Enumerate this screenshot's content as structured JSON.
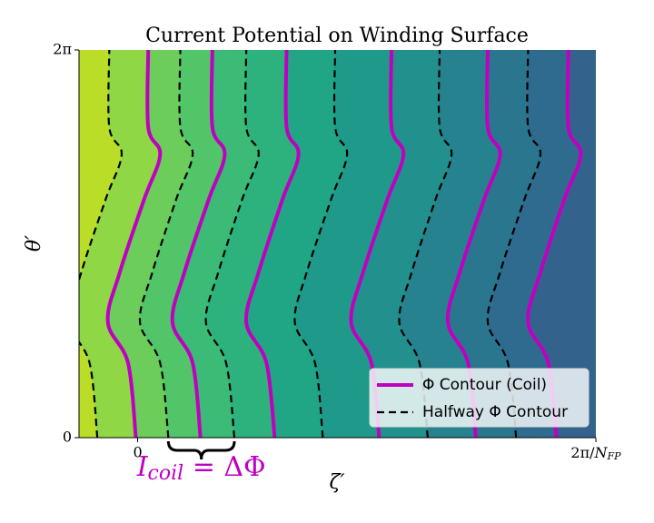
{
  "chart_data": {
    "type": "contour",
    "title": "Current Potential on Winding Surface",
    "xlabel": "ζ′",
    "ylabel": "θ′",
    "xlim": [
      -0.128,
      1
    ],
    "ylim": [
      0,
      6.283
    ],
    "xticks": [
      0,
      {
        "value": 1,
        "label": "2π/N_FP"
      }
    ],
    "yticks": [
      0,
      {
        "value": 6.283,
        "label": "2π"
      }
    ],
    "y": [
      0,
      1.21,
      1.87,
      2.68,
      3.86,
      4.59,
      5.03,
      6.283
    ],
    "series": [
      {
        "name": "Φ Contour (Coil)",
        "color": "#c000c0",
        "dash": false,
        "lines": [
          [
            -0.004,
            -0.021,
            -0.065,
            -0.039,
            0.014,
            0.049,
            0.023,
            0.023
          ],
          [
            0.137,
            0.12,
            0.076,
            0.102,
            0.155,
            0.19,
            0.163,
            0.163
          ],
          [
            0.299,
            0.281,
            0.237,
            0.264,
            0.316,
            0.351,
            0.325,
            0.325
          ],
          [
            0.527,
            0.51,
            0.466,
            0.492,
            0.545,
            0.58,
            0.554,
            0.554
          ],
          [
            0.738,
            0.721,
            0.677,
            0.703,
            0.756,
            0.791,
            0.764,
            0.764
          ],
          [
            0.914,
            0.896,
            0.852,
            0.879,
            0.931,
            0.967,
            0.94,
            0.94
          ]
        ]
      },
      {
        "name": "Halfway Φ Contour",
        "color": "#000000",
        "dash": true,
        "lines": [
          [
            -0.088,
            -0.105,
            -0.149,
            -0.123,
            -0.07,
            -0.035,
            -0.062,
            -0.062
          ],
          [
            0.067,
            0.049,
            0.005,
            0.032,
            0.084,
            0.12,
            0.093,
            0.093
          ],
          [
            0.211,
            0.193,
            0.149,
            0.176,
            0.228,
            0.264,
            0.237,
            0.237
          ],
          [
            0.404,
            0.387,
            0.343,
            0.369,
            0.422,
            0.457,
            0.431,
            0.431
          ],
          [
            0.633,
            0.615,
            0.571,
            0.598,
            0.65,
            0.685,
            0.659,
            0.659
          ],
          [
            0.826,
            0.808,
            0.764,
            0.791,
            0.844,
            0.879,
            0.852,
            0.852
          ]
        ]
      }
    ],
    "fill_colors": [
      "#bade28",
      "#8fd744",
      "#6ccd5a",
      "#52c569",
      "#3bbb75",
      "#2db27d",
      "#21a685",
      "#1f9a8a",
      "#22908d",
      "#26828e",
      "#2a768e",
      "#2e6b8e",
      "#33638d"
    ],
    "annotation": {
      "main": "I",
      "sub": "coil",
      "rest": " = ΔΦ",
      "color": "#c000c0"
    },
    "legend": "lower right"
  }
}
